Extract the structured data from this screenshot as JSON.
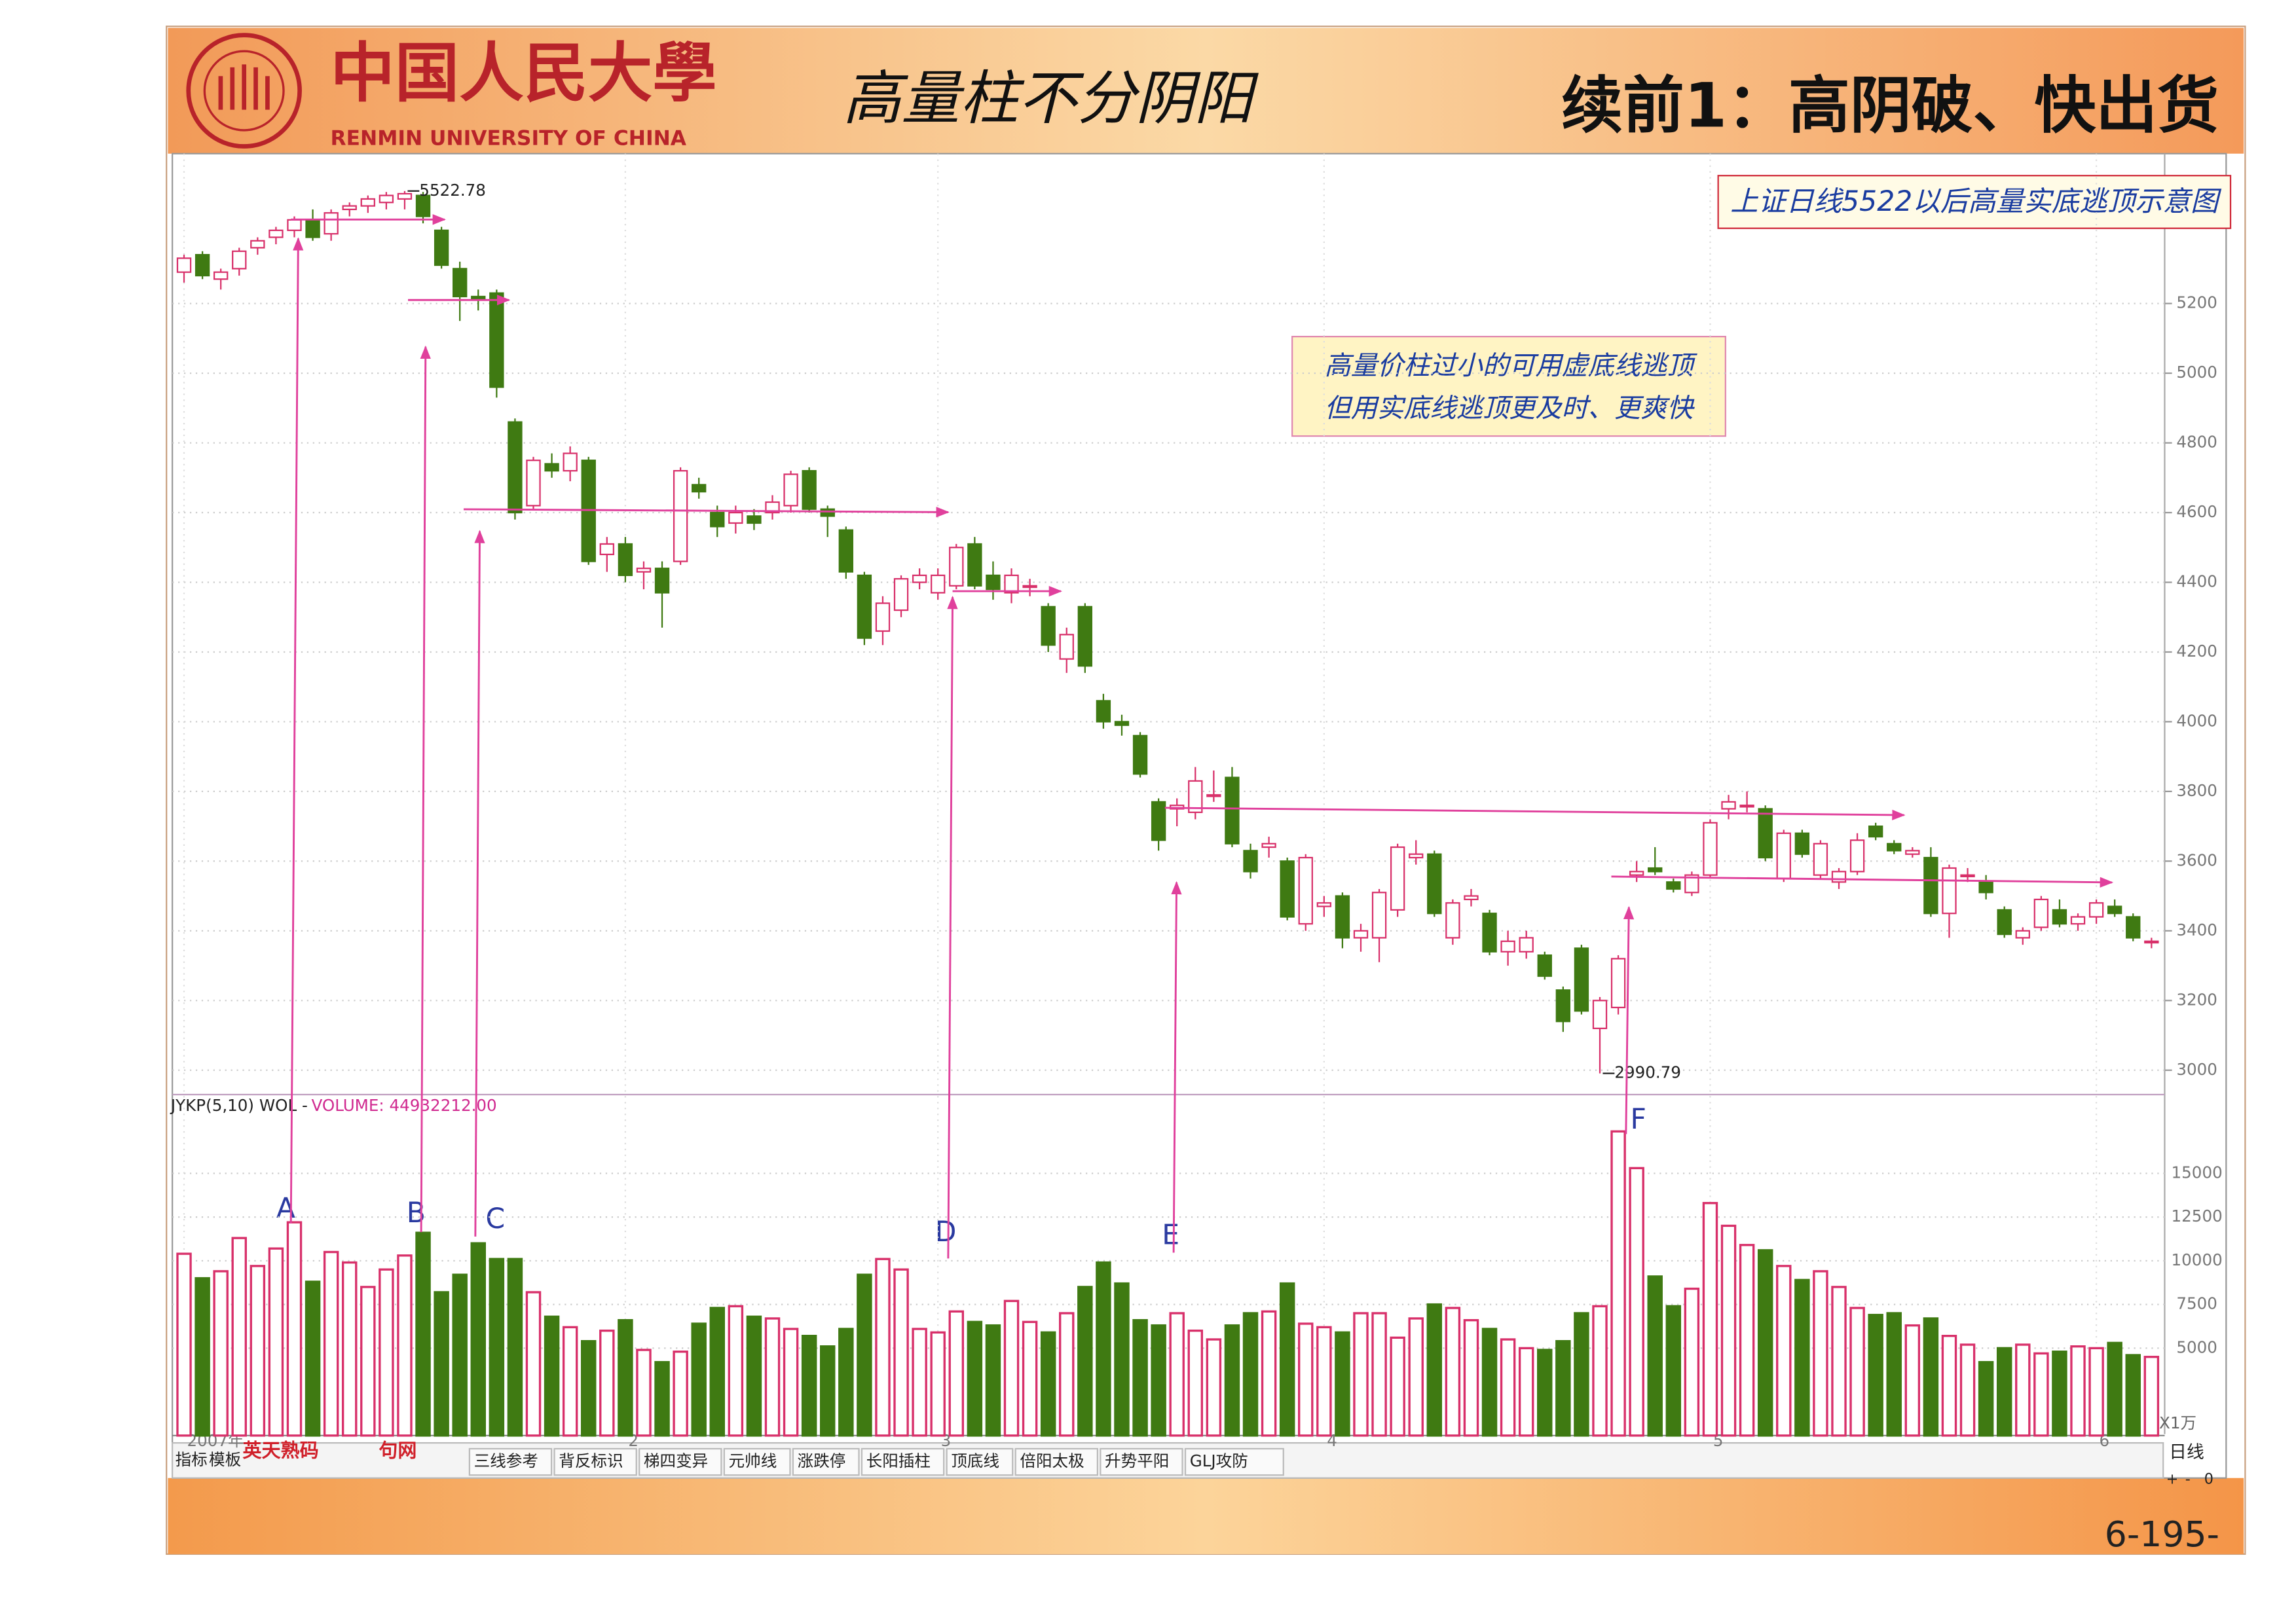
{
  "header": {
    "university": "中国人民大學",
    "university_en": "RENMIN UNIVERSITY OF CHINA",
    "handwritten": "高量柱不分阴阳",
    "title": "续前1：高阴破、快出货"
  },
  "chart_data": [
    {
      "type": "candlestick",
      "subtitle": "上证日线5522以后高量实底逃顶示意图",
      "note": [
        "高量价柱过小的可用虚底线逃顶",
        "但用实底线逃顶更及时、更爽快"
      ],
      "up_color": "#d8306a",
      "down_color": "#3f7a12",
      "grid": true,
      "ylim": [
        2930,
        5630
      ],
      "yticks": [
        3000,
        3200,
        3400,
        3600,
        3800,
        4000,
        4200,
        4400,
        4600,
        4800,
        5000,
        5200
      ],
      "categories": [
        "2007年",
        null,
        null,
        null,
        null,
        null,
        null,
        null,
        null,
        null,
        null,
        null,
        null,
        null,
        null,
        null,
        null,
        null,
        null,
        null,
        null,
        null,
        null,
        null,
        "2",
        null,
        null,
        null,
        null,
        null,
        null,
        null,
        null,
        null,
        null,
        null,
        null,
        null,
        null,
        null,
        null,
        "3",
        null,
        null,
        null,
        null,
        null,
        null,
        null,
        null,
        null,
        null,
        null,
        null,
        null,
        null,
        null,
        null,
        null,
        null,
        null,
        null,
        "4",
        null,
        null,
        null,
        null,
        null,
        null,
        null,
        null,
        null,
        null,
        null,
        null,
        null,
        null,
        null,
        null,
        null,
        null,
        null,
        null,
        "5",
        null,
        null,
        null,
        null,
        null,
        null,
        null,
        null,
        null,
        null,
        null,
        null,
        null,
        null,
        null,
        null,
        null,
        null,
        null,
        null,
        "6",
        null,
        null,
        null
      ],
      "ohlc": [
        [
          5290,
          5340,
          5260,
          5330
        ],
        [
          5340,
          5350,
          5270,
          5280
        ],
        [
          5270,
          5300,
          5240,
          5290
        ],
        [
          5300,
          5360,
          5280,
          5350
        ],
        [
          5360,
          5390,
          5340,
          5380
        ],
        [
          5390,
          5420,
          5370,
          5410
        ],
        [
          5410,
          5450,
          5390,
          5440
        ],
        [
          5440,
          5470,
          5380,
          5390
        ],
        [
          5400,
          5470,
          5380,
          5460
        ],
        [
          5470,
          5490,
          5450,
          5480
        ],
        [
          5480,
          5510,
          5460,
          5500
        ],
        [
          5490,
          5520,
          5470,
          5510
        ],
        [
          5500,
          5522.78,
          5470,
          5515
        ],
        [
          5510,
          5520,
          5430,
          5450
        ],
        [
          5410,
          5420,
          5300,
          5310
        ],
        [
          5300,
          5320,
          5150,
          5220
        ],
        [
          5220,
          5240,
          5180,
          5210
        ],
        [
          5230,
          5240,
          4930,
          4960
        ],
        [
          4860,
          4870,
          4580,
          4600
        ],
        [
          4620,
          4760,
          4610,
          4750
        ],
        [
          4740,
          4770,
          4700,
          4720
        ],
        [
          4720,
          4790,
          4690,
          4770
        ],
        [
          4750,
          4760,
          4450,
          4460
        ],
        [
          4480,
          4530,
          4430,
          4510
        ],
        [
          4510,
          4530,
          4400,
          4420
        ],
        [
          4430,
          4460,
          4380,
          4440
        ],
        [
          4440,
          4460,
          4270,
          4370
        ],
        [
          4460,
          4730,
          4450,
          4720
        ],
        [
          4680,
          4700,
          4640,
          4660
        ],
        [
          4600,
          4620,
          4530,
          4560
        ],
        [
          4570,
          4620,
          4540,
          4600
        ],
        [
          4590,
          4610,
          4550,
          4570
        ],
        [
          4600,
          4650,
          4580,
          4630
        ],
        [
          4620,
          4720,
          4600,
          4710
        ],
        [
          4720,
          4730,
          4600,
          4610
        ],
        [
          4610,
          4620,
          4530,
          4590
        ],
        [
          4550,
          4560,
          4410,
          4430
        ],
        [
          4420,
          4430,
          4220,
          4240
        ],
        [
          4260,
          4360,
          4220,
          4340
        ],
        [
          4320,
          4420,
          4300,
          4410
        ],
        [
          4400,
          4440,
          4380,
          4420
        ],
        [
          4370,
          4440,
          4350,
          4420
        ],
        [
          4390,
          4510,
          4380,
          4500
        ],
        [
          4510,
          4530,
          4380,
          4390
        ],
        [
          4420,
          4460,
          4350,
          4380
        ],
        [
          4370,
          4440,
          4340,
          4420
        ],
        [
          4390,
          4410,
          4360,
          4390
        ],
        [
          4330,
          4340,
          4200,
          4220
        ],
        [
          4180,
          4270,
          4140,
          4250
        ],
        [
          4330,
          4340,
          4140,
          4160
        ],
        [
          4060,
          4080,
          3980,
          4000
        ],
        [
          4000,
          4020,
          3960,
          3990
        ],
        [
          3960,
          3970,
          3840,
          3850
        ],
        [
          3770,
          3780,
          3630,
          3660
        ],
        [
          3750,
          3780,
          3700,
          3760
        ],
        [
          3740,
          3870,
          3720,
          3830
        ],
        [
          3790,
          3860,
          3770,
          3790
        ],
        [
          3840,
          3870,
          3640,
          3650
        ],
        [
          3630,
          3650,
          3550,
          3570
        ],
        [
          3640,
          3670,
          3610,
          3650
        ],
        [
          3600,
          3610,
          3430,
          3440
        ],
        [
          3420,
          3620,
          3400,
          3610
        ],
        [
          3470,
          3500,
          3440,
          3480
        ],
        [
          3500,
          3510,
          3350,
          3380
        ],
        [
          3380,
          3420,
          3340,
          3400
        ],
        [
          3380,
          3520,
          3310,
          3510
        ],
        [
          3460,
          3650,
          3440,
          3640
        ],
        [
          3610,
          3660,
          3590,
          3620
        ],
        [
          3620,
          3630,
          3440,
          3450
        ],
        [
          3380,
          3490,
          3360,
          3480
        ],
        [
          3490,
          3520,
          3470,
          3500
        ],
        [
          3450,
          3460,
          3330,
          3340
        ],
        [
          3340,
          3400,
          3300,
          3370
        ],
        [
          3340,
          3400,
          3320,
          3380
        ],
        [
          3330,
          3340,
          3260,
          3270
        ],
        [
          3230,
          3240,
          3110,
          3140
        ],
        [
          3350,
          3360,
          3160,
          3170
        ],
        [
          3120,
          3210,
          2990.79,
          3200
        ],
        [
          3180,
          3330,
          3160,
          3320
        ],
        [
          3560,
          3600,
          3540,
          3570
        ],
        [
          3580,
          3640,
          3560,
          3570
        ],
        [
          3540,
          3550,
          3510,
          3520
        ],
        [
          3510,
          3570,
          3500,
          3560
        ],
        [
          3560,
          3720,
          3550,
          3710
        ],
        [
          3750,
          3790,
          3720,
          3770
        ],
        [
          3760,
          3800,
          3740,
          3760
        ],
        [
          3750,
          3760,
          3600,
          3610
        ],
        [
          3550,
          3690,
          3540,
          3680
        ],
        [
          3680,
          3690,
          3610,
          3620
        ],
        [
          3560,
          3660,
          3550,
          3650
        ],
        [
          3540,
          3580,
          3520,
          3570
        ],
        [
          3570,
          3680,
          3560,
          3660
        ],
        [
          3700,
          3710,
          3660,
          3670
        ],
        [
          3650,
          3660,
          3620,
          3630
        ],
        [
          3620,
          3640,
          3610,
          3630
        ],
        [
          3610,
          3640,
          3440,
          3450
        ],
        [
          3450,
          3590,
          3380,
          3580
        ],
        [
          3560,
          3580,
          3540,
          3560
        ],
        [
          3540,
          3560,
          3490,
          3510
        ],
        [
          3460,
          3470,
          3380,
          3390
        ],
        [
          3380,
          3410,
          3360,
          3400
        ],
        [
          3410,
          3500,
          3400,
          3490
        ],
        [
          3460,
          3490,
          3410,
          3420
        ],
        [
          3420,
          3450,
          3400,
          3440
        ],
        [
          3440,
          3490,
          3420,
          3480
        ],
        [
          3470,
          3490,
          3440,
          3450
        ],
        [
          3440,
          3450,
          3370,
          3380
        ],
        [
          3370,
          3380,
          3350,
          3370
        ]
      ]
    },
    {
      "type": "bar",
      "indicator": "JYKP(5,10) WOL -",
      "volume_label": "VOLUME: 44932212.00",
      "unit": "X1万",
      "ylim": [
        0,
        18500
      ],
      "yticks": [
        5000,
        7500,
        10000,
        12500,
        15000
      ],
      "annotations": [
        "A",
        "B",
        "C",
        "D",
        "E",
        "F"
      ],
      "values": [
        10400,
        9000,
        9400,
        11300,
        9700,
        10700,
        12200,
        8800,
        10500,
        9900,
        8500,
        9500,
        10300,
        11600,
        8200,
        9200,
        11000,
        10100,
        10100,
        8200,
        6800,
        6200,
        5400,
        6000,
        6600,
        4900,
        4200,
        4800,
        6400,
        7300,
        7400,
        6800,
        6700,
        6100,
        5700,
        5100,
        6100,
        9200,
        10100,
        9500,
        6100,
        5900,
        7100,
        6500,
        6300,
        7700,
        6500,
        5900,
        7000,
        8500,
        9900,
        8700,
        6600,
        6300,
        7000,
        6000,
        5500,
        6300,
        7000,
        7100,
        8700,
        6400,
        6200,
        5900,
        7000,
        7000,
        5600,
        6700,
        7500,
        7300,
        6600,
        6100,
        5500,
        5000,
        4900,
        5400,
        7000,
        7400,
        17400,
        15300,
        9100,
        7400,
        8400,
        13300,
        12000,
        10900,
        10600,
        9700,
        8900,
        9400,
        8500,
        7300,
        6900,
        7000,
        6300,
        6700,
        5700,
        5200,
        4200,
        5000,
        5200,
        4700,
        4800,
        5100,
        5000,
        5300,
        4600,
        4500
      ]
    }
  ],
  "toolbar": {
    "left": [
      "指标",
      "模板"
    ],
    "brand": "英天熟码",
    "brand_site": "句网",
    "tabs": [
      "三线参考",
      "背反标识",
      "梯四变异",
      "元帅线",
      "涨跌停",
      "长阳插柱",
      "顶底线",
      "倍阳太极",
      "升势平阳",
      "GLJ攻防"
    ],
    "period": "日线",
    "controls": [
      "+",
      "-",
      "0"
    ]
  },
  "page_number": "6-195-"
}
